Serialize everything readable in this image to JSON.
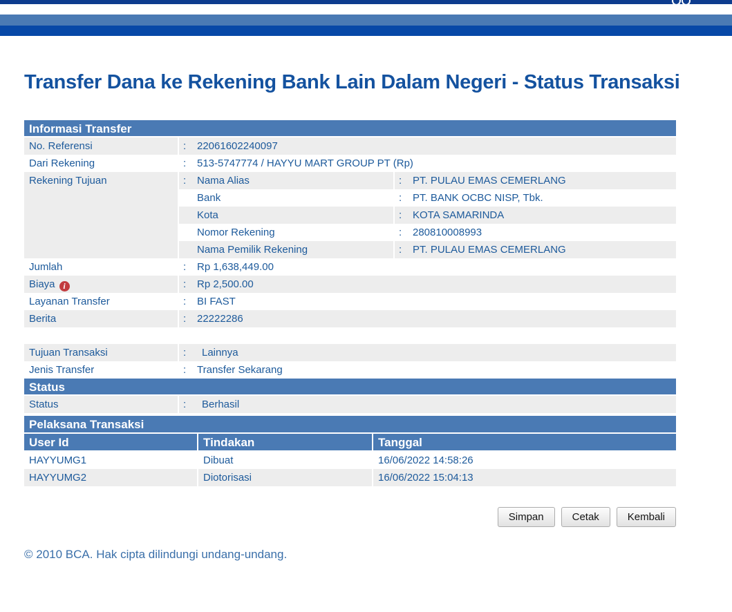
{
  "colors": {
    "navy_bar": "#0d3c8e",
    "steel_bar": "#4a7ab4",
    "royal_bar": "#0748a7",
    "section_header_bg": "#4a7ab4",
    "text_blue": "#1d5a9b",
    "title_blue": "#14529f",
    "row_stripe_gray": "#ededed",
    "info_icon_red": "#c23b3f",
    "footer_text_blue": "#3a6fa9"
  },
  "page": {
    "title": "Transfer Dana ke Rekening Bank Lain Dalam Negeri - Status Transaksi"
  },
  "informasi_transfer": {
    "heading": "Informasi Transfer",
    "no_referensi": {
      "label": "No. Referensi",
      "value": "22061602240097"
    },
    "dari_rekening": {
      "label": "Dari Rekening",
      "value": "513-5747774 / HAYYU MART GROUP PT  (Rp)"
    },
    "rekening_tujuan": {
      "label": "Rekening Tujuan",
      "sub_rows": [
        {
          "label": "Nama Alias",
          "value": "PT. PULAU EMAS CEMERLANG"
        },
        {
          "label": "Bank",
          "value": "PT. BANK OCBC NISP, Tbk."
        },
        {
          "label": "Kota",
          "value": "KOTA SAMARINDA"
        },
        {
          "label": "Nomor Rekening",
          "value": "280810008993"
        },
        {
          "label": "Nama Pemilik Rekening",
          "value": "PT. PULAU EMAS CEMERLANG"
        }
      ]
    },
    "jumlah": {
      "label": "Jumlah",
      "value": "Rp 1,638,449.00"
    },
    "biaya": {
      "label": "Biaya",
      "value": "Rp 2,500.00",
      "info_icon": "info-icon"
    },
    "layanan_transfer": {
      "label": "Layanan Transfer",
      "value": "BI FAST"
    },
    "berita": {
      "label": "Berita",
      "value": "22222286"
    },
    "tujuan_transaksi": {
      "label": "Tujuan Transaksi",
      "value": "Lainnya"
    },
    "jenis_transfer": {
      "label": "Jenis Transfer",
      "value": "Transfer Sekarang"
    }
  },
  "status_section": {
    "heading": "Status",
    "status": {
      "label": "Status",
      "value": "Berhasil"
    }
  },
  "pelaksana_transaksi": {
    "heading": "Pelaksana Transaksi",
    "columns": [
      "User Id",
      "Tindakan",
      "Tanggal"
    ],
    "rows": [
      {
        "user_id": "HAYYUMG1",
        "tindakan": "Dibuat",
        "tanggal": "16/06/2022 14:58:26"
      },
      {
        "user_id": "HAYYUMG2",
        "tindakan": "Diotorisasi",
        "tanggal": "16/06/2022 15:04:13"
      }
    ]
  },
  "buttons": {
    "simpan": "Simpan",
    "cetak": "Cetak",
    "kembali": "Kembali"
  },
  "footer": {
    "copyright": "©  2010 BCA. Hak cipta dilindungi undang-undang."
  }
}
